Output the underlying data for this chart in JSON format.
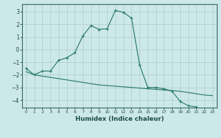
{
  "xlabel": "Humidex (Indice chaleur)",
  "background_color": "#cde8e8",
  "line_color": "#2d7d6e",
  "grid_color": "#a8cccc",
  "xlim": [
    -0.5,
    23.5
  ],
  "ylim": [
    -4.6,
    3.6
  ],
  "xticks": [
    0,
    1,
    2,
    3,
    4,
    5,
    6,
    7,
    8,
    9,
    10,
    11,
    12,
    13,
    14,
    15,
    16,
    17,
    18,
    19,
    20,
    21,
    22,
    23
  ],
  "yticks": [
    -4,
    -3,
    -2,
    -1,
    0,
    1,
    2,
    3
  ],
  "curve1_x": [
    0,
    1,
    2,
    3,
    4,
    5,
    6,
    7,
    8,
    9,
    10,
    11,
    12,
    13,
    14,
    15,
    16,
    17,
    18,
    19,
    20,
    21
  ],
  "curve1_y": [
    -1.5,
    -2.0,
    -1.7,
    -1.7,
    -0.85,
    -0.65,
    -0.25,
    1.1,
    1.9,
    1.6,
    1.65,
    3.1,
    2.95,
    2.5,
    -1.2,
    -3.0,
    -3.0,
    -3.1,
    -3.3,
    -4.1,
    -4.45,
    -4.55
  ],
  "curve2_x": [
    0,
    1,
    2,
    3,
    4,
    5,
    6,
    7,
    8,
    9,
    10,
    11,
    12,
    13,
    14,
    15,
    16,
    17,
    18,
    19,
    20,
    21,
    22,
    23
  ],
  "curve2_y": [
    -1.75,
    -2.0,
    -2.1,
    -2.2,
    -2.3,
    -2.4,
    -2.5,
    -2.6,
    -2.7,
    -2.8,
    -2.85,
    -2.9,
    -2.95,
    -3.0,
    -3.05,
    -3.1,
    -3.15,
    -3.2,
    -3.25,
    -3.3,
    -3.4,
    -3.5,
    -3.6,
    -3.65
  ]
}
